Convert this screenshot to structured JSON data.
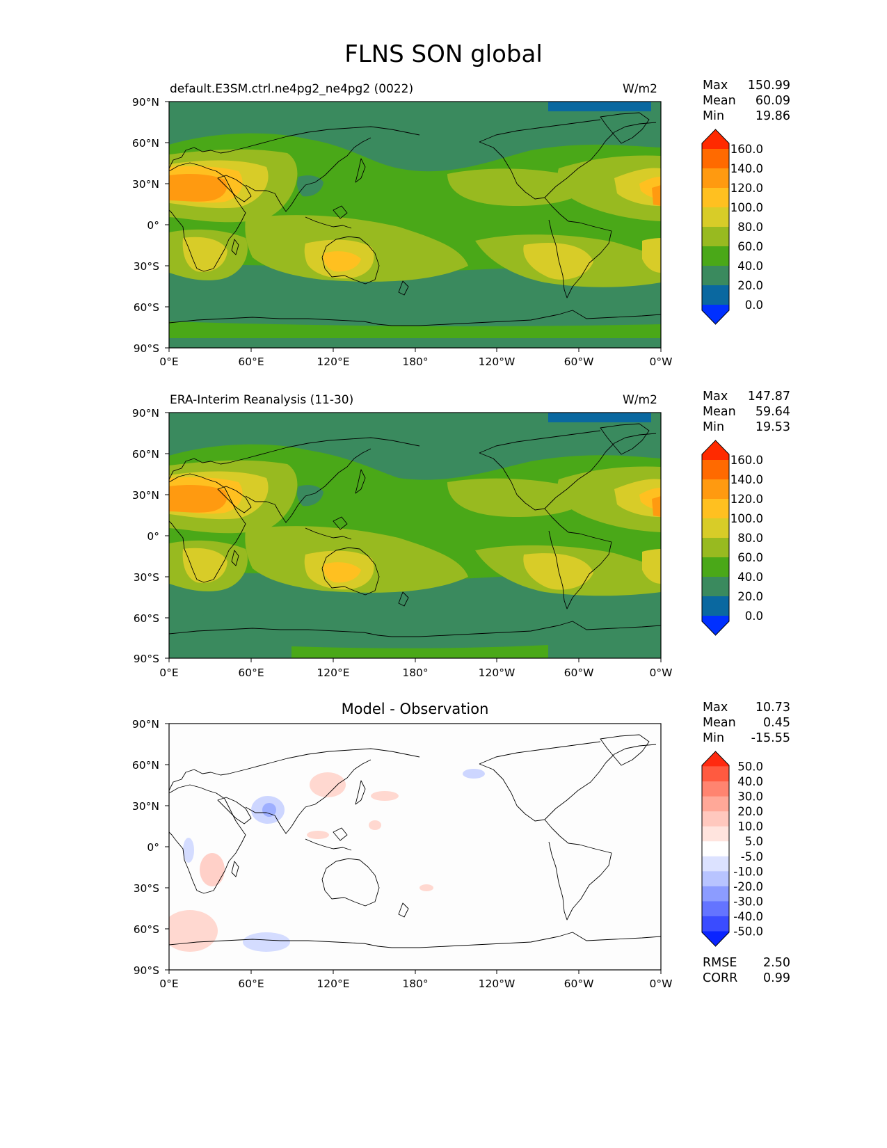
{
  "figure": {
    "title": "FLNS SON global",
    "lat_labels": [
      "90°N",
      "60°N",
      "30°N",
      "0°",
      "30°S",
      "60°S",
      "90°S"
    ],
    "lon_labels": [
      "0°E",
      "60°E",
      "120°E",
      "180°",
      "120°W",
      "60°W",
      "0°W"
    ]
  },
  "panels": [
    {
      "id": "model",
      "left_title": "default.E3SM.ctrl.ne4pg2_ne4pg2 (0022)",
      "units": "W/m2",
      "stats": {
        "max_label": "Max",
        "max": "150.99",
        "mean_label": "Mean",
        "mean": "60.09",
        "min_label": "Min",
        "min": "19.86"
      },
      "colorbar": {
        "ticks": [
          "160.0",
          "140.0",
          "120.0",
          "100.0",
          "80.0",
          "60.0",
          "40.0",
          "20.0",
          "0.0"
        ],
        "colors": [
          "#ff2a00",
          "#ff6a00",
          "#ff9a10",
          "#ffc020",
          "#d8cc28",
          "#98ba20",
          "#4aa818",
          "#3a8a5e",
          "#0a68a0",
          "#0030ff"
        ]
      }
    },
    {
      "id": "obs",
      "left_title": "ERA-Interim Reanalysis (11-30)",
      "units": "W/m2",
      "stats": {
        "max_label": "Max",
        "max": "147.87",
        "mean_label": "Mean",
        "mean": "59.64",
        "min_label": "Min",
        "min": "19.53"
      },
      "colorbar": {
        "ticks": [
          "160.0",
          "140.0",
          "120.0",
          "100.0",
          "80.0",
          "60.0",
          "40.0",
          "20.0",
          "0.0"
        ],
        "colors": [
          "#ff2a00",
          "#ff6a00",
          "#ff9a10",
          "#ffc020",
          "#d8cc28",
          "#98ba20",
          "#4aa818",
          "#3a8a5e",
          "#0a68a0",
          "#0030ff"
        ]
      }
    },
    {
      "id": "diff",
      "center_title": "Model - Observation",
      "stats": {
        "max_label": "Max",
        "max": "10.73",
        "mean_label": "Mean",
        "mean": "0.45",
        "min_label": "Min",
        "min": "-15.55"
      },
      "colorbar": {
        "ticks": [
          "50.0",
          "40.0",
          "30.0",
          "20.0",
          "10.0",
          "5.0",
          "-5.0",
          "-10.0",
          "-20.0",
          "-30.0",
          "-40.0",
          "-50.0"
        ],
        "colors": [
          "#ff2a10",
          "#ff5a40",
          "#ff8470",
          "#ffa898",
          "#ffc8be",
          "#ffe4de",
          "#ffffff",
          "#dce2ff",
          "#b8c4ff",
          "#8c9cff",
          "#6474ff",
          "#3a4cff",
          "#0a24ff"
        ]
      },
      "metrics": {
        "rmse_label": "RMSE",
        "rmse": "2.50",
        "corr_label": "CORR",
        "corr": "0.99"
      }
    }
  ]
}
